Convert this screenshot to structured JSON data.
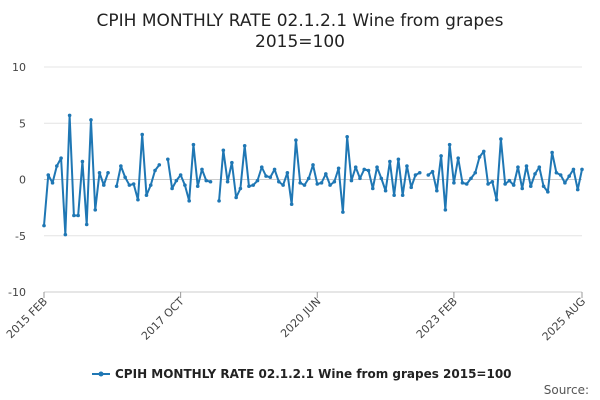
{
  "chart_data": {
    "type": "line",
    "title_line1": "CPIH MONTHLY RATE 02.1.2.1 Wine from grapes",
    "title_line2": "2015=100",
    "xlabel": "",
    "ylabel": "",
    "ylim": [
      -10,
      10
    ],
    "yticks": [
      "10",
      "5",
      "0",
      "-5",
      "-10"
    ],
    "ytick_values": [
      10,
      5,
      0,
      -5,
      -10
    ],
    "xticks": [
      {
        "label": "2015 FEB",
        "index": 0
      },
      {
        "label": "2017 OCT",
        "index": 32
      },
      {
        "label": "2020 JUN",
        "index": 64
      },
      {
        "label": "2023 FEB",
        "index": 96
      },
      {
        "label": "2025 AUG",
        "index": 126
      }
    ],
    "grid": true,
    "legend_position": "bottom",
    "line_color": "#1f77b4",
    "series": [
      {
        "name": "CPIH MONTHLY RATE 02.1.2.1 Wine from grapes 2015=100",
        "values": [
          -4.1,
          0.4,
          -0.3,
          1.2,
          1.9,
          -4.9,
          5.7,
          -3.2,
          -3.2,
          1.6,
          -4.0,
          5.3,
          -2.7,
          0.6,
          -0.5,
          0.6,
          null,
          -0.6,
          1.2,
          0.2,
          -0.5,
          -0.4,
          -1.8,
          4.0,
          -1.4,
          -0.5,
          0.8,
          1.3,
          null,
          1.8,
          -0.8,
          -0.1,
          0.4,
          -0.5,
          -1.9,
          3.1,
          -0.6,
          0.9,
          -0.1,
          -0.2,
          null,
          -1.9,
          2.6,
          -0.2,
          1.5,
          -1.6,
          -0.8,
          3.0,
          -0.6,
          -0.5,
          -0.1,
          1.1,
          0.3,
          0.2,
          0.9,
          -0.2,
          -0.5,
          0.6,
          -2.2,
          3.5,
          -0.3,
          -0.5,
          0.1,
          1.3,
          -0.4,
          -0.3,
          0.5,
          -0.5,
          -0.2,
          1.0,
          -2.9,
          3.8,
          -0.1,
          1.1,
          0.1,
          0.9,
          0.8,
          -0.8,
          1.1,
          0.1,
          -1.0,
          1.6,
          -1.4,
          1.8,
          -1.4,
          1.2,
          -0.7,
          0.4,
          0.6,
          null,
          0.4,
          0.7,
          -1.0,
          2.1,
          -2.7,
          3.1,
          -0.3,
          1.9,
          -0.3,
          -0.4,
          0.1,
          0.6,
          2.0,
          2.5,
          -0.4,
          -0.2,
          -1.8,
          3.6,
          -0.4,
          -0.1,
          -0.5,
          1.1,
          -0.8,
          1.2,
          -0.6,
          0.5,
          1.1,
          -0.6,
          -1.1,
          2.4,
          0.6,
          0.4,
          -0.3,
          0.3,
          0.9,
          -0.9,
          0.9
        ]
      }
    ]
  },
  "legend": {
    "label": "CPIH MONTHLY RATE 02.1.2.1 Wine from grapes 2015=100"
  },
  "source": {
    "label": "Source:"
  }
}
